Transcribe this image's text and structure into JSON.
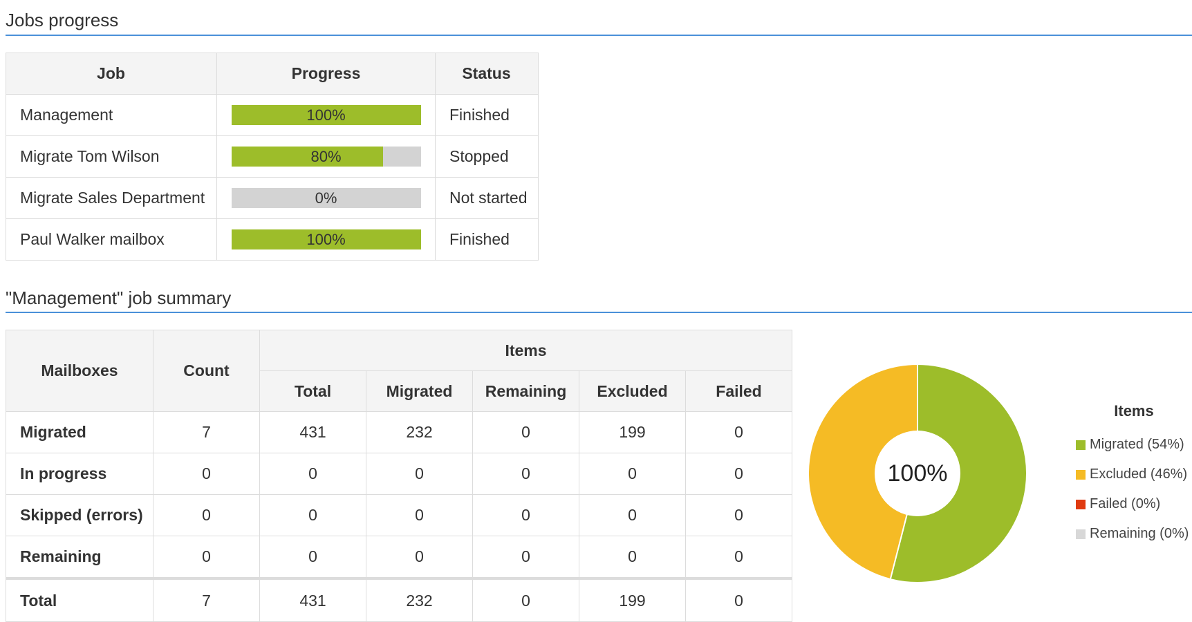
{
  "jobs_section": {
    "title": "Jobs progress",
    "columns": [
      "Job",
      "Progress",
      "Status"
    ],
    "rows": [
      {
        "job": "Management",
        "progress_label": "100%",
        "progress": 1.0,
        "status": "Finished"
      },
      {
        "job": "Migrate Tom Wilson",
        "progress_label": "80%",
        "progress": 0.8,
        "status": "Stopped"
      },
      {
        "job": "Migrate Sales Department",
        "progress_label": "0%",
        "progress": 0.0,
        "status": "Not started"
      },
      {
        "job": "Paul Walker mailbox",
        "progress_label": "100%",
        "progress": 1.0,
        "status": "Finished"
      }
    ]
  },
  "summary_section": {
    "title": "\"Management\" job summary",
    "headers": {
      "mailboxes": "Mailboxes",
      "count": "Count",
      "items": "Items",
      "total": "Total",
      "migrated": "Migrated",
      "remaining": "Remaining",
      "excluded": "Excluded",
      "failed": "Failed"
    },
    "rows": [
      {
        "label": "Migrated",
        "count": "7",
        "total": "431",
        "migrated": "232",
        "remaining": "0",
        "excluded": "199",
        "failed": "0"
      },
      {
        "label": "In progress",
        "count": "0",
        "total": "0",
        "migrated": "0",
        "remaining": "0",
        "excluded": "0",
        "failed": "0"
      },
      {
        "label": "Skipped (errors)",
        "count": "0",
        "total": "0",
        "migrated": "0",
        "remaining": "0",
        "excluded": "0",
        "failed": "0"
      },
      {
        "label": "Remaining",
        "count": "0",
        "total": "0",
        "migrated": "0",
        "remaining": "0",
        "excluded": "0",
        "failed": "0"
      },
      {
        "label": "Total",
        "count": "7",
        "total": "431",
        "migrated": "232",
        "remaining": "0",
        "excluded": "199",
        "failed": "0"
      }
    ]
  },
  "chart_data": {
    "type": "pie",
    "center_label": "100%",
    "legend_title": "Items",
    "slices": [
      {
        "name": "Migrated (54%)",
        "value": 54,
        "color": "#9dbd2a"
      },
      {
        "name": "Excluded (46%)",
        "value": 46,
        "color": "#f5bb25"
      },
      {
        "name": "Failed (0%)",
        "value": 0,
        "color": "#e03a10"
      },
      {
        "name": "Remaining (0%)",
        "value": 0,
        "color": "#d8d8d8"
      }
    ]
  },
  "colors": {
    "progress_fill": "#9dbd2a",
    "progress_track": "#d3d3d3",
    "section_rule": "#4a90d9"
  }
}
